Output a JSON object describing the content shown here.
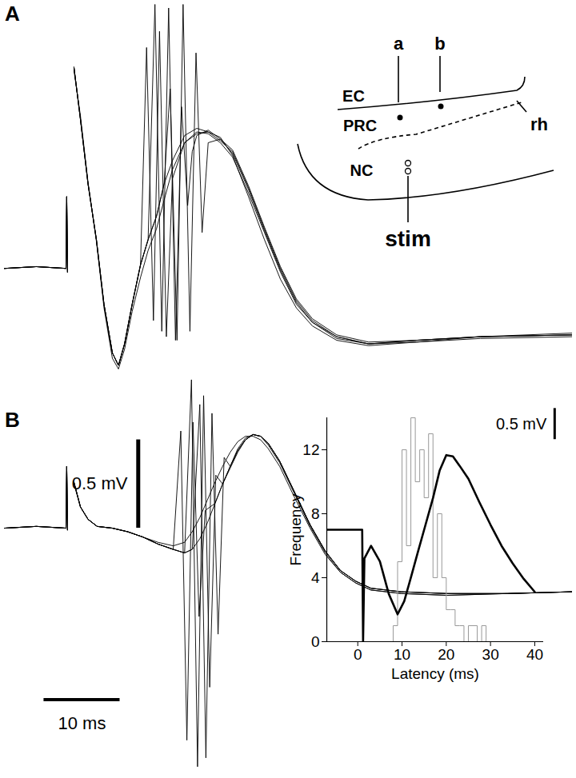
{
  "chart_data": [
    {
      "type": "line",
      "title": "A",
      "tick_labels": false,
      "color": "#000000",
      "xlim": [
        -8.2,
        66.5
      ],
      "ylim": [
        -0.6,
        1.47
      ],
      "series": [
        {
          "x": [
            -8.2,
            -4,
            -0.1,
            0,
            0.1,
            0.5,
            0.95,
            1.8,
            2.8,
            3.9,
            4.9,
            6.0,
            6.8,
            7.6,
            8.6,
            9.7,
            10.7,
            11.8,
            12.8,
            13.9,
            15.5,
            17.1,
            18.6,
            20.2,
            21.8,
            23.9,
            26,
            28.1,
            30.2,
            32.3,
            35.5,
            39.7,
            46,
            54.4,
            66.5
          ],
          "values": [
            0,
            0.01,
            0,
            0.4,
            -0.02,
            null,
            1.12,
            0.83,
            0.47,
            0.16,
            -0.2,
            -0.47,
            -0.54,
            -0.42,
            -0.2,
            0.02,
            0.16,
            0.29,
            0.47,
            0.6,
            0.74,
            0.78,
            0.76,
            0.71,
            0.65,
            0.45,
            0.22,
            0,
            -0.18,
            -0.29,
            -0.38,
            -0.42,
            -0.4,
            -0.38,
            -0.37
          ]
        },
        {
          "x": [
            -8.2,
            -4,
            -0.1,
            0,
            0.1,
            0.5,
            0.95,
            1.8,
            2.8,
            3.9,
            4.9,
            6.0,
            6.8,
            7.6,
            8.6,
            9.7,
            10.7,
            11.8,
            12.8,
            13.9,
            15.5,
            17.1,
            18.6,
            20.2,
            21.8,
            23.9,
            26,
            28.1,
            30.2,
            32.3,
            35.5,
            39.7,
            46,
            54.4,
            66.5
          ],
          "values": [
            0,
            0.01,
            0,
            0.4,
            -0.02,
            null,
            1.1,
            0.85,
            0.48,
            0.15,
            -0.22,
            -0.5,
            -0.56,
            -0.45,
            -0.24,
            -0.05,
            0.1,
            0.22,
            0.38,
            0.55,
            0.7,
            0.75,
            0.76,
            0.73,
            0.63,
            0.4,
            0.16,
            -0.06,
            -0.22,
            -0.32,
            -0.4,
            -0.43,
            -0.41,
            -0.39,
            -0.38
          ]
        },
        {
          "x": [
            -8.2,
            -4,
            -0.1,
            0,
            0.1,
            0.5,
            0.95,
            1.8,
            2.8,
            3.9,
            4.9,
            6.0,
            6.8,
            7.6,
            8.6,
            9.7,
            10.5,
            11.4,
            12.2,
            13.1,
            13.9,
            14.7,
            15.5,
            17.1,
            18.6,
            20.2,
            21.8,
            23.9,
            26,
            28.1,
            30.2,
            32.3,
            35.5,
            39.7,
            46,
            54.4,
            66.5
          ],
          "values": [
            0,
            0.01,
            0,
            0.4,
            -0.02,
            null,
            1.12,
            0.83,
            0.47,
            0.16,
            -0.2,
            -0.47,
            -0.54,
            -0.42,
            -0.2,
            0.02,
            1.23,
            -0.29,
            1.32,
            -0.38,
            0.5,
            0.6,
            0.7,
            0.76,
            0.75,
            0.7,
            0.62,
            0.42,
            0.2,
            -0.02,
            -0.2,
            -0.3,
            -0.39,
            -0.42,
            -0.4,
            -0.38,
            -0.37
          ]
        },
        {
          "x": [
            -8.2,
            -4,
            -0.1,
            0,
            0.1,
            0.5,
            0.95,
            1.8,
            2.8,
            3.9,
            4.9,
            6.0,
            6.8,
            7.6,
            8.6,
            9.7,
            10.7,
            11.6,
            12.5,
            13.4,
            14.3,
            15.1,
            15.9,
            16.5,
            17.1,
            18.6,
            20.2,
            21.8,
            23.9,
            26,
            28.1,
            30.2,
            32.3,
            35.5,
            39.7,
            46,
            54.4,
            66.5
          ],
          "values": [
            0,
            0.01,
            0,
            0.4,
            -0.02,
            null,
            1.12,
            0.83,
            0.47,
            0.16,
            -0.2,
            -0.47,
            -0.54,
            -0.42,
            -0.2,
            0.02,
            0.16,
            1.47,
            -0.35,
            1.45,
            -0.4,
            0.9,
            0.35,
            0.65,
            0.74,
            0.77,
            0.72,
            0.64,
            0.44,
            0.21,
            -0.01,
            -0.19,
            -0.3,
            -0.38,
            -0.42,
            -0.41,
            -0.38,
            -0.37
          ]
        },
        {
          "x": [
            -8.2,
            -4,
            -0.1,
            0,
            0.1,
            0.5,
            0.95,
            1.8,
            2.8,
            3.9,
            4.9,
            6.0,
            6.8,
            7.6,
            8.6,
            9.7,
            10.7,
            11.8,
            12.8,
            13.6,
            14.5,
            15.3,
            16.2,
            17.0,
            17.8,
            18.6,
            20.2,
            21.8,
            23.9,
            26,
            28.1,
            30.2,
            32.3,
            35.5,
            39.7,
            46,
            54.4,
            66.5
          ],
          "values": [
            0,
            0.01,
            0,
            0.4,
            -0.02,
            null,
            1.12,
            0.83,
            0.47,
            0.16,
            -0.2,
            -0.47,
            -0.54,
            -0.42,
            -0.2,
            0.02,
            0.16,
            0.29,
            0.47,
            1.0,
            -0.4,
            1.47,
            -0.35,
            1.2,
            0.2,
            0.7,
            0.72,
            0.66,
            0.46,
            0.23,
            0.01,
            -0.17,
            -0.28,
            -0.37,
            -0.41,
            -0.4,
            -0.38,
            -0.36
          ]
        }
      ],
      "schematic": {
        "sites": [
          "a",
          "b"
        ],
        "regions": [
          "EC",
          "PRC",
          "NC"
        ],
        "boundary": "rh",
        "stimulus": "stim"
      }
    },
    {
      "type": "line",
      "title": "B",
      "tick_labels": false,
      "color": "#000000",
      "xlim": [
        -8.2,
        66.5
      ],
      "ylim": [
        -1.38,
        0.86
      ],
      "series": [
        {
          "x": [
            -8.2,
            -4,
            -0.1,
            0,
            0.1,
            0.5,
            0.95,
            1.8,
            2.8,
            4,
            6,
            8,
            10,
            12,
            14,
            15.5,
            16.5,
            17.5,
            18.5,
            19.5,
            20.5,
            21.5,
            22.5,
            23.5,
            24.5,
            25.5,
            26.5,
            28,
            30,
            32,
            34,
            36,
            38,
            40,
            44,
            50,
            58,
            66.5
          ],
          "values": [
            0,
            0.01,
            0,
            0.35,
            -0.01,
            null,
            0.26,
            0.12,
            0.05,
            0.01,
            0,
            -0.02,
            -0.05,
            -0.09,
            -0.12,
            -0.14,
            -0.12,
            -0.06,
            0.03,
            0.14,
            0.25,
            0.35,
            0.44,
            0.5,
            0.53,
            0.52,
            0.48,
            0.38,
            0.2,
            0.02,
            -0.13,
            -0.24,
            -0.3,
            -0.34,
            -0.36,
            -0.37,
            -0.37,
            -0.36
          ]
        },
        {
          "x": [
            -8.2,
            -4,
            -0.1,
            0,
            0.1,
            0.5,
            0.95,
            1.8,
            2.8,
            4,
            6,
            8,
            10,
            12,
            14,
            15.5,
            16.5,
            17.5,
            18.5,
            19.5,
            20.5,
            21.5,
            22.5,
            23.5,
            24.5,
            25.5,
            26.5,
            28,
            30,
            32,
            34,
            36,
            38,
            40,
            44,
            50,
            58,
            66.5
          ],
          "values": [
            0,
            0.01,
            0,
            0.35,
            -0.01,
            null,
            0.25,
            0.12,
            0.05,
            0.01,
            0,
            -0.02,
            -0.05,
            -0.08,
            -0.1,
            -0.08,
            -0.02,
            0.06,
            0.16,
            0.26,
            0.35,
            0.43,
            0.49,
            0.52,
            0.52,
            0.5,
            0.45,
            0.35,
            0.17,
            0,
            -0.15,
            -0.25,
            -0.31,
            -0.35,
            -0.37,
            -0.38,
            -0.37,
            -0.36
          ]
        },
        {
          "x": [
            -8.2,
            -4,
            -0.1,
            0,
            0.1,
            0.5,
            0.95,
            1.8,
            2.8,
            4,
            6,
            8,
            10,
            12,
            14,
            15,
            15.8,
            16.6,
            17.4,
            18.2,
            19.5,
            20.5,
            21.5,
            22.5,
            23.5,
            24.5,
            25.5,
            26.5,
            28,
            30,
            32,
            34,
            36,
            38,
            40,
            44,
            50,
            58,
            66.5
          ],
          "values": [
            0,
            0.01,
            0,
            0.35,
            -0.01,
            null,
            0.26,
            0.12,
            0.05,
            0.01,
            0,
            -0.02,
            -0.05,
            -0.09,
            -0.12,
            0.55,
            -1.2,
            0.6,
            -0.5,
            0.1,
            0.14,
            0.25,
            0.35,
            0.44,
            0.5,
            0.53,
            0.52,
            0.48,
            0.38,
            0.2,
            0.02,
            -0.13,
            -0.24,
            -0.3,
            -0.34,
            -0.36,
            -0.37,
            -0.37,
            -0.36
          ]
        },
        {
          "x": [
            -8.2,
            -4,
            -0.1,
            0,
            0.1,
            0.5,
            0.95,
            1.8,
            2.8,
            4,
            6,
            8,
            10,
            12,
            14,
            15.5,
            16.4,
            17.2,
            18.0,
            18.8,
            19.6,
            20.5,
            21.5,
            22.5,
            23.5,
            24.5,
            25.5,
            26.5,
            28,
            30,
            32,
            34,
            36,
            38,
            40,
            44,
            50,
            58,
            66.5
          ],
          "values": [
            0,
            0.01,
            0,
            0.35,
            -0.01,
            null,
            0.26,
            0.12,
            0.05,
            0.01,
            0,
            -0.02,
            -0.05,
            -0.09,
            -0.12,
            -0.14,
            0.84,
            -1.35,
            0.75,
            -0.9,
            0.3,
            0.25,
            0.34,
            0.43,
            0.5,
            0.53,
            0.52,
            0.47,
            0.37,
            0.19,
            0.01,
            -0.14,
            -0.25,
            -0.31,
            -0.35,
            -0.37,
            -0.38,
            -0.37,
            -0.36
          ]
        },
        {
          "x": [
            -8.2,
            -4,
            -0.1,
            0,
            0.1,
            0.5,
            0.95,
            1.8,
            2.8,
            4,
            6,
            8,
            10,
            12,
            14,
            15.5,
            16.5,
            17.5,
            18.3,
            19.1,
            19.9,
            20.7,
            21.5,
            22.5,
            23.5,
            24.5,
            25.5,
            26.5,
            28,
            30,
            32,
            34,
            36,
            38,
            40,
            44,
            50,
            58,
            66.5
          ],
          "values": [
            0,
            0.01,
            0,
            0.35,
            -0.01,
            null,
            0.26,
            0.12,
            0.05,
            0.01,
            0,
            -0.02,
            -0.05,
            -0.09,
            -0.12,
            -0.14,
            -0.12,
            0.7,
            -1.3,
            0.65,
            -0.6,
            0.4,
            0.35,
            0.45,
            0.51,
            0.53,
            0.52,
            0.48,
            0.38,
            0.2,
            0.02,
            -0.13,
            -0.24,
            -0.3,
            -0.34,
            -0.36,
            -0.37,
            -0.37,
            -0.36
          ]
        }
      ],
      "y_scale_bar": {
        "value": 0.5,
        "label": "0.5 mV"
      },
      "x_scale_bar": {
        "value": 10,
        "label": "10 ms"
      }
    },
    {
      "type": "histogram",
      "x_label": "Latency (ms)",
      "y_label": "Frequency",
      "color": "#999999",
      "xlim": [
        -7,
        42
      ],
      "ylim": [
        0,
        14
      ],
      "xticks": [
        0,
        10,
        20,
        30,
        40
      ],
      "yticks": [
        0,
        4,
        8,
        12
      ],
      "bins": [
        8,
        9,
        10,
        11,
        12,
        13,
        14,
        15,
        16,
        17,
        18,
        19,
        20,
        21,
        22,
        23,
        24,
        25,
        26,
        27,
        28,
        29
      ],
      "counts": [
        1,
        5,
        12,
        6,
        14,
        10,
        12,
        9,
        13,
        4,
        8,
        4,
        2,
        2,
        1,
        1,
        0,
        1,
        1,
        0,
        1
      ],
      "y2lim": [
        -1.8,
        1.8
      ],
      "series": [
        {
          "type": "line",
          "axis": "y2",
          "color": "#000000",
          "x": [
            -7,
            1,
            1.2,
            1.5,
            3,
            5,
            7,
            9,
            10.5,
            12,
            13.5,
            15,
            17,
            18.5,
            20,
            21.5,
            23,
            25,
            27.5,
            30,
            32.5,
            35,
            37.5,
            40
          ],
          "values": [
            0,
            0,
            -1.8,
            -0.46,
            -0.26,
            -0.51,
            -1.03,
            -1.36,
            -1.15,
            -0.77,
            -0.38,
            0,
            0.51,
            0.95,
            1.2,
            1.18,
            1.03,
            0.82,
            0.44,
            0.08,
            -0.26,
            -0.54,
            -0.79,
            -1.0
          ]
        }
      ],
      "y2_scale_bar": {
        "value": 0.5,
        "label": "0.5 mV"
      }
    }
  ]
}
